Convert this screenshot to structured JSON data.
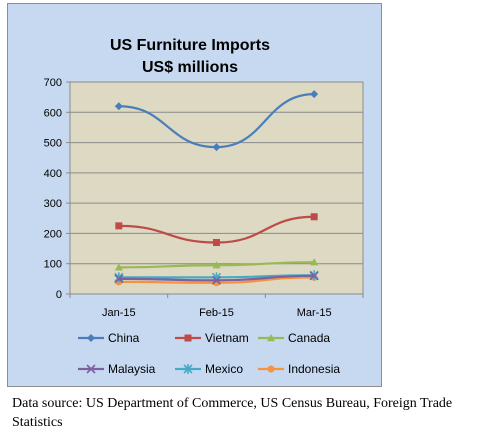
{
  "chart_data": {
    "type": "line",
    "title_lines": [
      "US Furniture Imports",
      "US$ millions"
    ],
    "categories": [
      "Jan-15",
      "Feb-15",
      "Mar-15"
    ],
    "ylim": [
      0,
      700
    ],
    "yticks": [
      0,
      100,
      200,
      300,
      400,
      500,
      600,
      700
    ],
    "grid": true,
    "legend_position": "bottom",
    "plot_background": "#ddd9c3",
    "chart_background": "#c6d9f1",
    "series": [
      {
        "name": "China",
        "values": [
          620,
          485,
          660
        ],
        "color": "#4a7ebb",
        "marker": "diamond"
      },
      {
        "name": "Vietnam",
        "values": [
          225,
          170,
          255
        ],
        "color": "#be4b48",
        "marker": "square"
      },
      {
        "name": "Canada",
        "values": [
          88,
          95,
          105
        ],
        "color": "#98b954",
        "marker": "triangle"
      },
      {
        "name": "Malaysia",
        "values": [
          50,
          45,
          60
        ],
        "color": "#7d60a0",
        "marker": "x"
      },
      {
        "name": "Mexico",
        "values": [
          55,
          55,
          62
        ],
        "color": "#46aac5",
        "marker": "star"
      },
      {
        "name": "Indonesia",
        "values": [
          40,
          37,
          55
        ],
        "color": "#f69240",
        "marker": "circle"
      }
    ]
  },
  "source": {
    "text": "Data source: US Department of Commerce, US Census Bureau, Foreign Trade Statistics"
  }
}
